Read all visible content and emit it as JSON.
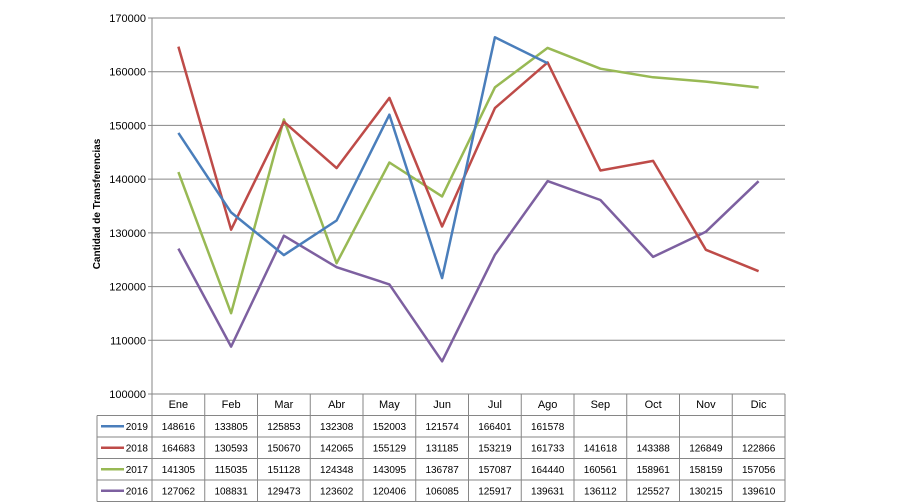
{
  "chart_data": {
    "type": "line",
    "title": "",
    "xlabel": "",
    "ylabel": "Cantidad de Transferencias",
    "ylim": [
      100000,
      170000
    ],
    "ytick_step": 10000,
    "grid": true,
    "legend": "table-bottom",
    "categories": [
      "Ene",
      "Feb",
      "Mar",
      "Abr",
      "May",
      "Jun",
      "Jul",
      "Ago",
      "Sep",
      "Oct",
      "Nov",
      "Dic"
    ],
    "series": [
      {
        "name": "2019",
        "color": "#4a7ebb",
        "values": [
          148616,
          133805,
          125853,
          132308,
          152003,
          121574,
          166401,
          161578,
          null,
          null,
          null,
          null
        ]
      },
      {
        "name": "2018",
        "color": "#be4b48",
        "values": [
          164683,
          130593,
          150670,
          142065,
          155129,
          131185,
          153219,
          161733,
          141618,
          143388,
          126849,
          122866
        ]
      },
      {
        "name": "2017",
        "color": "#98b954",
        "values": [
          141305,
          115035,
          151128,
          124348,
          143095,
          136787,
          157087,
          164440,
          160561,
          158961,
          158159,
          157056
        ]
      },
      {
        "name": "2016",
        "color": "#7d60a0",
        "values": [
          127062,
          108831,
          129473,
          123602,
          120406,
          106085,
          125917,
          139631,
          136112,
          125527,
          130215,
          139610
        ]
      }
    ]
  }
}
